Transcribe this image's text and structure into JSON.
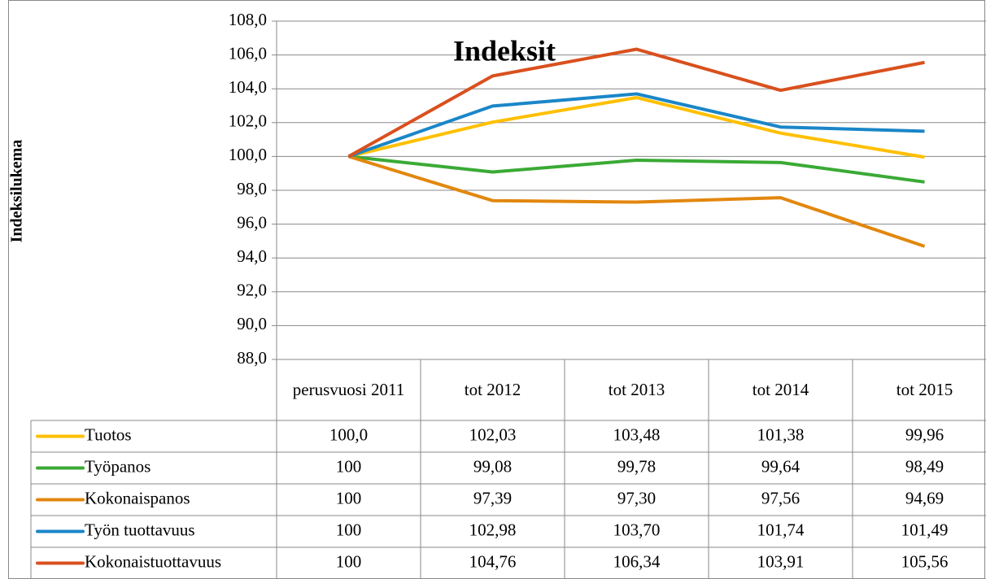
{
  "chart_data": {
    "type": "line",
    "title": "Indeksit",
    "y_label": "Indeksilukema",
    "categories": [
      "perusvuosi 2011",
      "tot 2012",
      "tot 2013",
      "tot 2014",
      "tot 2015"
    ],
    "series": [
      {
        "name": "Tuotos",
        "color": "#ffc000",
        "values": [
          100.0,
          102.03,
          103.48,
          101.38,
          99.96
        ],
        "value_labels": [
          "100,0",
          "102,03",
          "103,48",
          "101,38",
          "99,96"
        ]
      },
      {
        "name": "Työpanos",
        "color": "#3aaa35",
        "values": [
          100,
          99.08,
          99.78,
          99.64,
          98.49
        ],
        "value_labels": [
          "100",
          "99,08",
          "99,78",
          "99,64",
          "98,49"
        ]
      },
      {
        "name": "Kokonaispanos",
        "color": "#e2870e",
        "values": [
          100,
          97.39,
          97.3,
          97.56,
          94.69
        ],
        "value_labels": [
          "100",
          "97,39",
          "97,30",
          "97,56",
          "94,69"
        ]
      },
      {
        "name": "Työn tuottavuus",
        "color": "#1a86c8",
        "values": [
          100,
          102.98,
          103.7,
          101.74,
          101.49
        ],
        "value_labels": [
          "100",
          "102,98",
          "103,70",
          "101,74",
          "101,49"
        ]
      },
      {
        "name": "Kokonaistuottavuus",
        "color": "#d9501e",
        "values": [
          100,
          104.76,
          106.34,
          103.91,
          105.56
        ],
        "value_labels": [
          "100",
          "104,76",
          "106,34",
          "103,91",
          "105,56"
        ]
      }
    ],
    "ylim": [
      88,
      108
    ],
    "yticks": [
      {
        "value": 88,
        "label": "88,0"
      },
      {
        "value": 90,
        "label": "90,0"
      },
      {
        "value": 92,
        "label": "92,0"
      },
      {
        "value": 94,
        "label": "94,0"
      },
      {
        "value": 96,
        "label": "96,0"
      },
      {
        "value": 98,
        "label": "98,0"
      },
      {
        "value": 100,
        "label": "100,0"
      },
      {
        "value": 102,
        "label": "102,0"
      },
      {
        "value": 104,
        "label": "104,0"
      },
      {
        "value": 106,
        "label": "106,0"
      },
      {
        "value": 108,
        "label": "108,0"
      }
    ],
    "grid": true
  }
}
